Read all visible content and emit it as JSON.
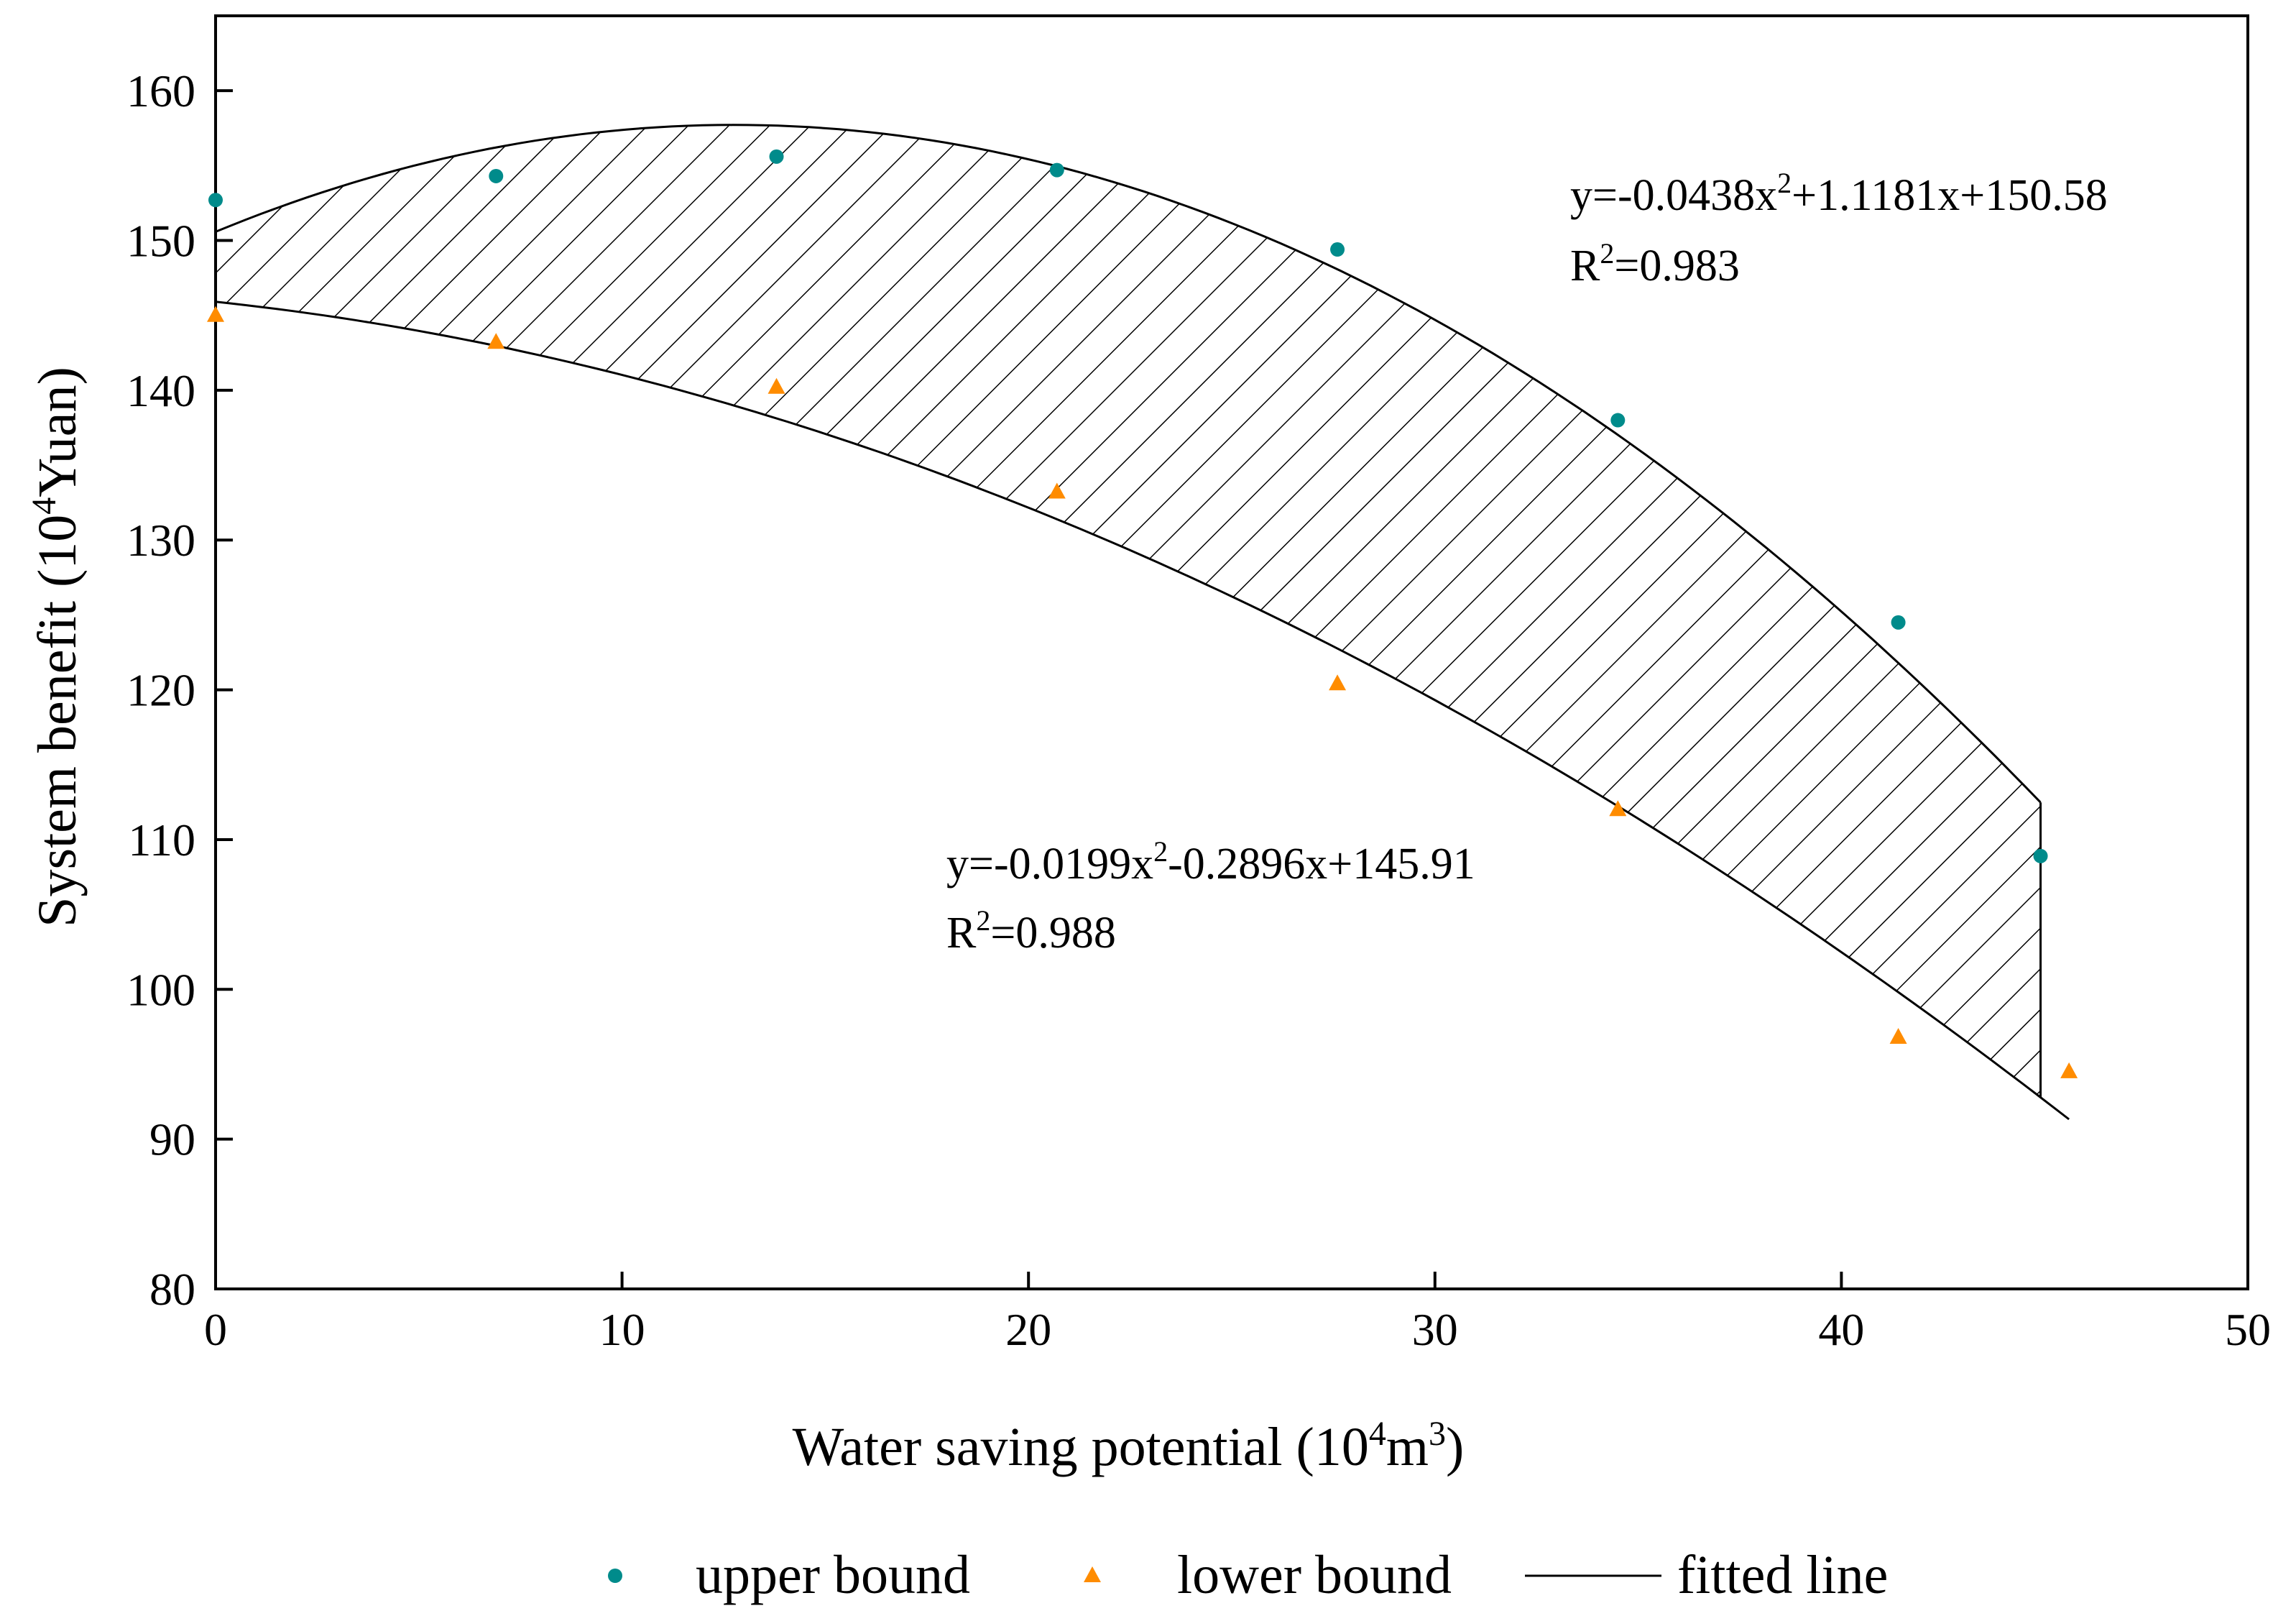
{
  "chart_data": {
    "type": "scatter",
    "title": "",
    "xlabel": {
      "pre": "Water saving potential (10",
      "sup1": "4",
      "mid": "m",
      "sup2": "3",
      "post": ")"
    },
    "ylabel": {
      "pre": "System benefit (10",
      "sup": "4",
      "post": "Yuan)"
    },
    "xlim": [
      0,
      50
    ],
    "ylim": [
      80,
      165
    ],
    "xticks": [
      0,
      10,
      20,
      30,
      40,
      50
    ],
    "yticks": [
      80,
      90,
      100,
      110,
      120,
      130,
      140,
      150,
      160
    ],
    "grid": false,
    "legend_position": "bottom",
    "series": [
      {
        "name": "upper bound",
        "marker": "circle",
        "color": "#008b8b",
        "x": [
          0,
          6.9,
          13.8,
          20.7,
          27.6,
          34.5,
          41.4,
          44.9
        ],
        "y": [
          152.7,
          154.3,
          155.6,
          154.7,
          149.4,
          138.0,
          124.5,
          108.9
        ]
      },
      {
        "name": "lower bound",
        "marker": "triangle",
        "color": "#ff8c00",
        "x": [
          0,
          6.9,
          13.8,
          20.7,
          27.6,
          34.5,
          41.4,
          45.6
        ],
        "y": [
          145.0,
          143.2,
          140.2,
          133.2,
          120.4,
          112.0,
          96.8,
          94.5
        ]
      }
    ],
    "fits": [
      {
        "name": "fitted line",
        "of": "upper bound",
        "a": -0.0438,
        "b": 1.1181,
        "c": 150.58,
        "x_range": [
          0,
          44.9
        ],
        "equation": {
          "pre": "y=-0.0438x",
          "sup": "2",
          "post": "+1.1181x+150.58"
        },
        "r2": {
          "pre": "R",
          "sup": "2",
          "post": "=0.983"
        }
      },
      {
        "name": "fitted line",
        "of": "lower bound",
        "a": -0.0199,
        "b": -0.2896,
        "c": 145.91,
        "x_range": [
          0,
          45.6
        ],
        "equation": {
          "pre": "y=-0.0199x",
          "sup": "2",
          "post": "-0.2896x+145.91"
        },
        "r2": {
          "pre": "R",
          "sup": "2",
          "post": "=0.988"
        }
      }
    ],
    "shaded_region": "hatched area between fitted lines",
    "legend": [
      {
        "label": "upper bound",
        "marker": "circle",
        "color": "#008b8b"
      },
      {
        "label": "lower bound",
        "marker": "triangle",
        "color": "#ff8c00"
      },
      {
        "label": "fitted line",
        "marker": "line",
        "color": "#000000"
      }
    ]
  }
}
